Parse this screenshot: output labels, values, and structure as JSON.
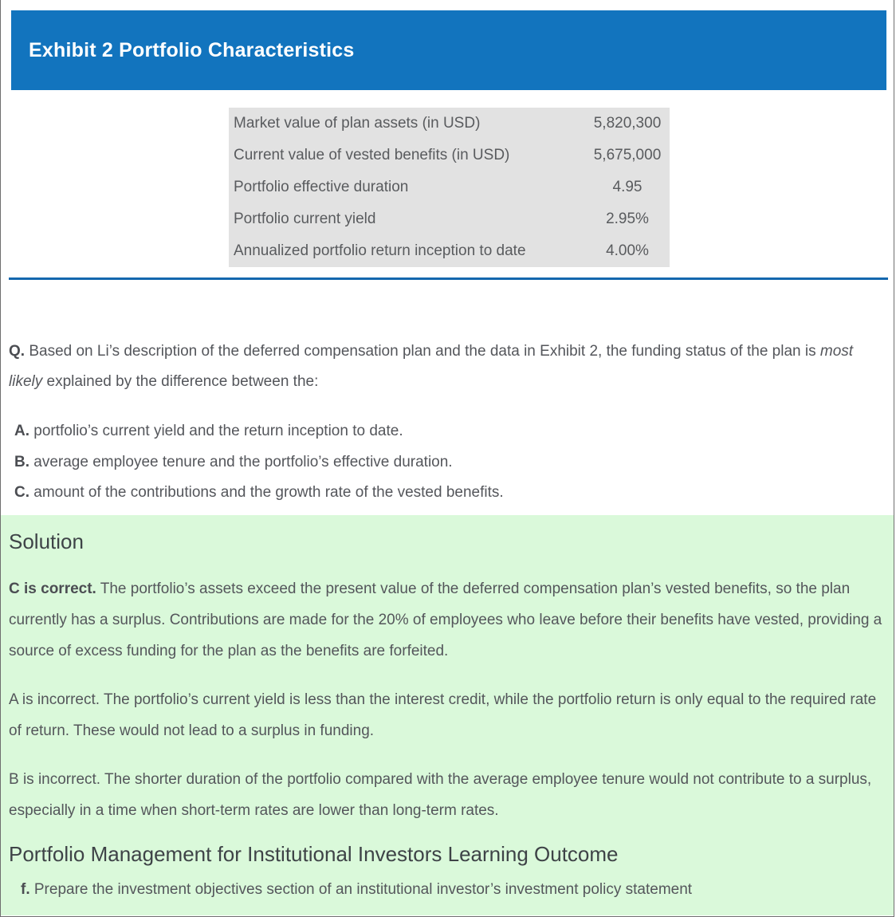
{
  "header": {
    "title": "Exhibit 2 Portfolio Characteristics"
  },
  "exhibit_table": {
    "rows": [
      {
        "label": "Market value of plan assets (in USD)",
        "value": "5,820,300"
      },
      {
        "label": "Current value of vested benefits (in USD)",
        "value": "5,675,000"
      },
      {
        "label": "Portfolio effective duration",
        "value": "4.95"
      },
      {
        "label": "Portfolio current yield",
        "value": "2.95%"
      },
      {
        "label": "Annualized portfolio return inception to date",
        "value": "4.00%"
      }
    ]
  },
  "question": {
    "prefix": "Q.",
    "text_before_italic": " Based on Li’s description of the deferred compensation plan and the data in Exhibit 2, the funding status of the plan is ",
    "italic": "most likely",
    "text_after_italic": " explained by the difference between the:",
    "options": [
      {
        "letter": "A.",
        "text": " portfolio’s current yield and the return inception to date."
      },
      {
        "letter": "B.",
        "text": " average employee tenure and the portfolio’s effective duration."
      },
      {
        "letter": "C.",
        "text": " amount of the contributions and the growth rate of the vested benefits."
      }
    ]
  },
  "solution": {
    "title": "Solution",
    "correct_lead": "C is correct.",
    "correct_text": " The portfolio’s assets exceed the present value of the deferred compensation plan’s vested benefits, so the plan currently has a surplus. Contributions are made for the 20% of employees who leave before their benefits have vested, providing a source of excess funding for the plan as the benefits are forfeited.",
    "incorrect_a": "A is incorrect. The portfolio’s current yield is less than the interest credit, while the portfolio return is only equal to the required rate of return. These would not lead to a surplus in funding.",
    "incorrect_b": "B is incorrect. The shorter duration of the portfolio compared with the average employee tenure would not contribute to a surplus, especially in a time when short-term rates are lower than long-term rates.",
    "learning_outcome_title": "Portfolio Management for Institutional Investors Learning Outcome",
    "learning_outcome_lead": "f.",
    "learning_outcome_text": " Prepare the investment objectives section of an institutional investor’s investment policy statement"
  },
  "colors": {
    "header_bg": "#1274BE",
    "divider": "#1467AE",
    "table_bg": "#E2E2E2",
    "solution_bg": "#DAF9DA",
    "body_text": "#54565B"
  }
}
